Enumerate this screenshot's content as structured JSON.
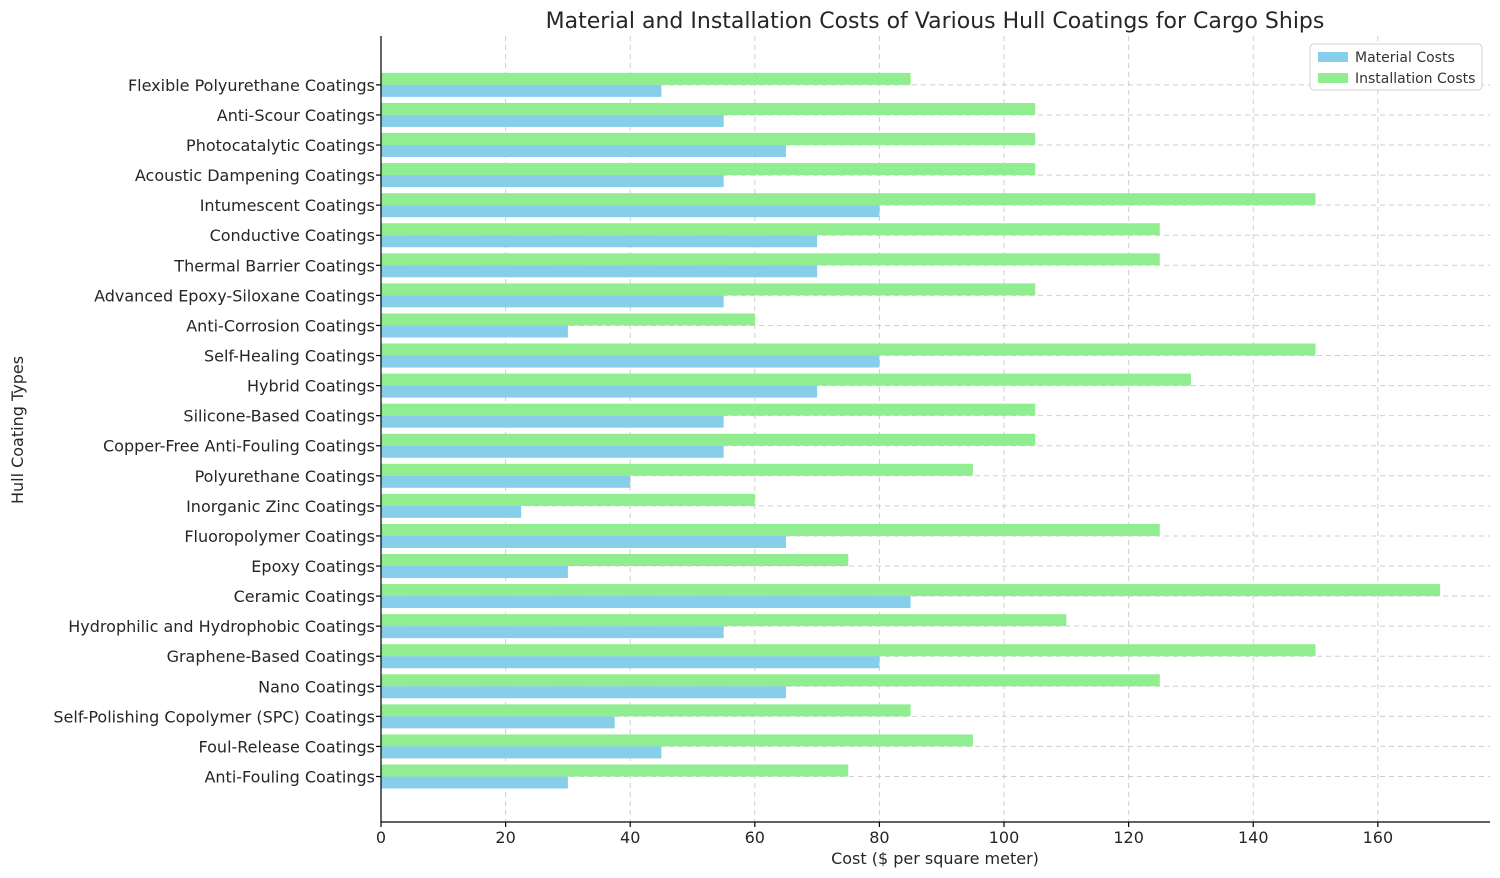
{
  "chart_data": {
    "type": "bar",
    "orientation": "horizontal",
    "title": "Material and Installation Costs of Various Hull Coatings for Cargo Ships",
    "xlabel": "Cost ($ per square meter)",
    "ylabel": "Hull Coating Types",
    "xlim": [
      0,
      178
    ],
    "xticks": [
      0,
      20,
      40,
      60,
      80,
      100,
      120,
      140,
      160
    ],
    "grid": true,
    "legend_position": "top-right",
    "categories": [
      "Anti-Fouling Coatings",
      "Foul-Release Coatings",
      "Self-Polishing Copolymer (SPC) Coatings",
      "Nano Coatings",
      "Graphene-Based Coatings",
      "Hydrophilic and Hydrophobic Coatings",
      "Ceramic Coatings",
      "Epoxy Coatings",
      "Fluoropolymer Coatings",
      "Inorganic Zinc Coatings",
      "Polyurethane Coatings",
      "Copper-Free Anti-Fouling Coatings",
      "Silicone-Based Coatings",
      "Hybrid Coatings",
      "Self-Healing Coatings",
      "Anti-Corrosion Coatings",
      "Advanced Epoxy-Siloxane Coatings",
      "Thermal Barrier Coatings",
      "Conductive Coatings",
      "Intumescent Coatings",
      "Acoustic Dampening Coatings",
      "Photocatalytic Coatings",
      "Anti-Scour Coatings",
      "Flexible Polyurethane Coatings"
    ],
    "series": [
      {
        "name": "Material Costs",
        "color": "#87ceeb",
        "values": [
          30,
          45,
          37.5,
          65,
          80,
          55,
          85,
          30,
          65,
          22.5,
          40,
          55,
          55,
          70,
          80,
          30,
          55,
          70,
          70,
          80,
          55,
          65,
          55,
          45
        ]
      },
      {
        "name": "Installation Costs",
        "color": "#90ee90",
        "values": [
          75,
          95,
          85,
          125,
          150,
          110,
          170,
          75,
          125,
          60,
          95,
          105,
          105,
          130,
          150,
          60,
          105,
          125,
          125,
          150,
          105,
          105,
          105,
          85
        ]
      }
    ]
  }
}
